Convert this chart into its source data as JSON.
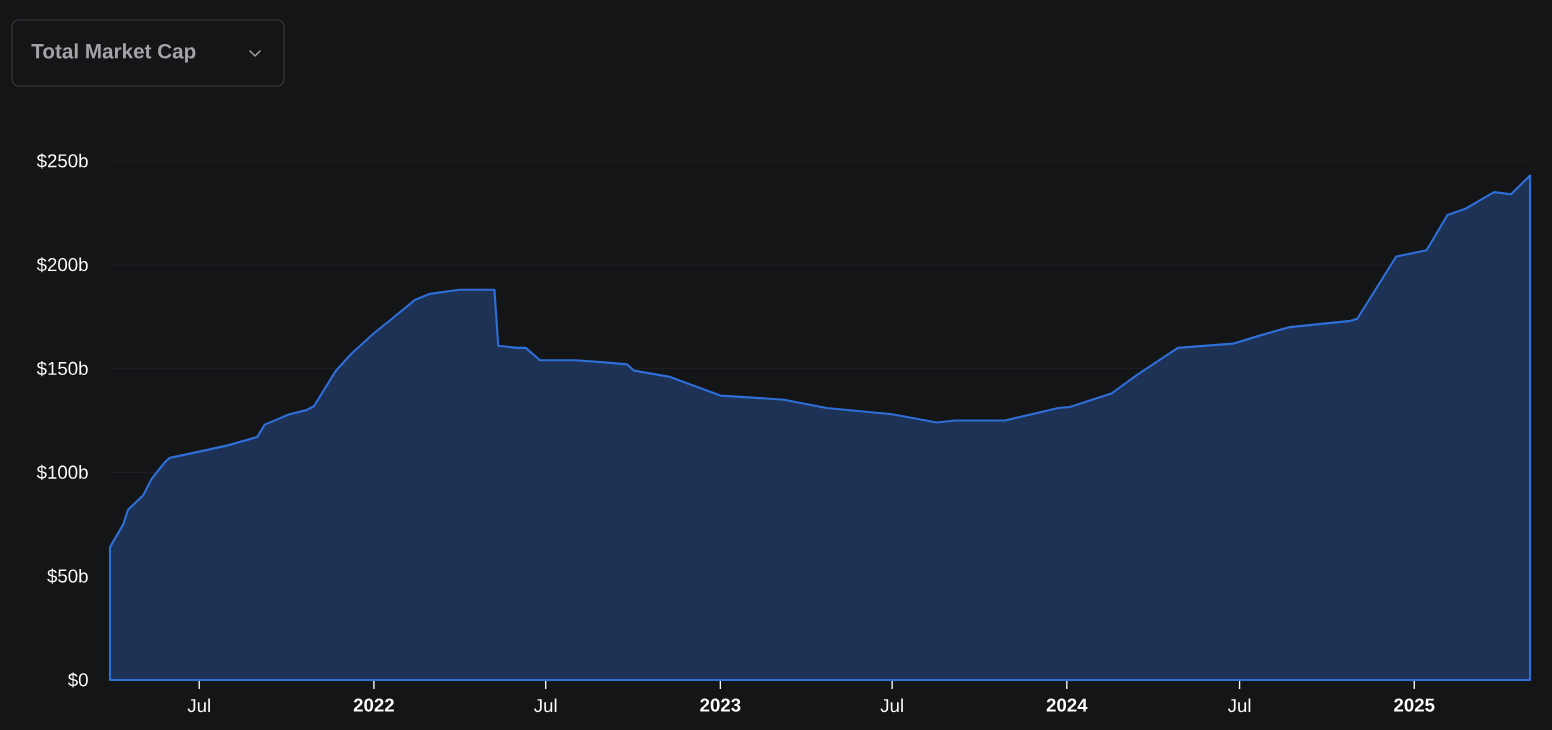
{
  "chart_data": {
    "type": "area",
    "title": "Total Market Cap",
    "color": "#2f6fd8",
    "x": [
      "2021-03-29",
      "2021-04-12",
      "2021-04-17",
      "2021-05-03",
      "2021-05-12",
      "2021-05-26",
      "2021-05-31",
      "2021-07-01",
      "2021-07-31",
      "2021-08-31",
      "2021-09-08",
      "2021-10-04",
      "2021-10-22",
      "2021-10-30",
      "2021-11-22",
      "2021-12-08",
      "2022-01-01",
      "2022-01-20",
      "2022-02-13",
      "2022-03-01",
      "2022-04-01",
      "2022-05-08",
      "2022-05-12",
      "2022-06-01",
      "2022-06-10",
      "2022-06-25",
      "2022-08-01",
      "2022-09-01",
      "2022-09-25",
      "2022-10-02",
      "2022-11-09",
      "2023-01-01",
      "2023-03-09",
      "2023-04-23",
      "2023-07-01",
      "2023-08-17",
      "2023-09-05",
      "2023-10-28",
      "2023-12-04",
      "2023-12-23",
      "2024-01-04",
      "2024-02-17",
      "2024-03-15",
      "2024-04-27",
      "2024-06-24",
      "2024-07-23",
      "2024-08-23",
      "2024-10-26",
      "2024-11-02",
      "2024-12-13",
      "2025-01-14",
      "2025-02-05",
      "2025-02-24",
      "2025-03-26",
      "2025-04-13",
      "2025-05-03"
    ],
    "values": [
      64,
      75,
      82,
      89,
      97,
      105,
      107,
      110,
      113,
      117,
      123,
      128,
      130,
      132,
      149,
      157,
      167,
      174,
      183,
      186,
      188,
      188,
      161,
      160,
      160,
      154,
      154,
      153,
      152,
      149,
      146,
      137,
      135,
      131,
      128,
      124,
      125,
      125,
      129,
      131,
      131.5,
      138,
      147,
      160,
      162,
      166,
      170,
      173,
      174,
      204,
      207,
      224,
      227,
      235,
      234,
      243
    ],
    "xlim": [
      "2021-03-29",
      "2025-05-04"
    ],
    "xticks": [
      {
        "value": "2021-07-01",
        "label": "Jul"
      },
      {
        "value": "2022-01-01",
        "label": "2022"
      },
      {
        "value": "2022-07-01",
        "label": "Jul"
      },
      {
        "value": "2023-01-01",
        "label": "2023"
      },
      {
        "value": "2023-07-01",
        "label": "Jul"
      },
      {
        "value": "2024-01-01",
        "label": "2024"
      },
      {
        "value": "2024-07-01",
        "label": "Jul"
      },
      {
        "value": "2025-01-01",
        "label": "2025"
      }
    ],
    "ylim": [
      0,
      250
    ],
    "yticks": [
      {
        "value": 0,
        "label": "$0"
      },
      {
        "value": 50,
        "label": "$50b"
      },
      {
        "value": 100,
        "label": "$100b"
      },
      {
        "value": 150,
        "label": "$150b"
      },
      {
        "value": 200,
        "label": "$200b"
      },
      {
        "value": 250,
        "label": "$250b"
      }
    ],
    "grid": "y"
  }
}
